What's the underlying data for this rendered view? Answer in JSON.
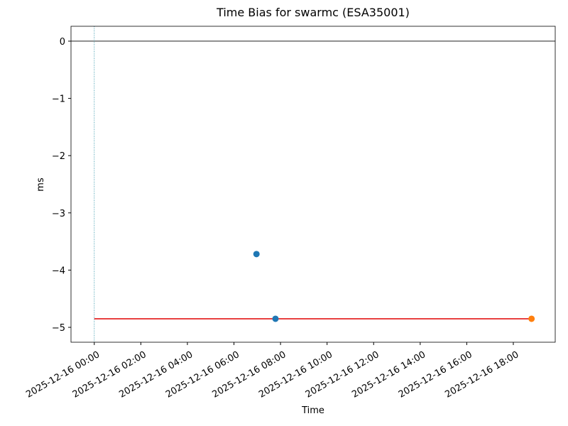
{
  "chart_data": {
    "type": "scatter",
    "title": "Time Bias for swarmc (ESA35001)",
    "xlabel": "Time",
    "ylabel": "ms",
    "xlim": [
      "2025-12-15 23:00",
      "2025-12-16 19:48"
    ],
    "xticks": [
      "2025-12-16 00:00",
      "2025-12-16 02:00",
      "2025-12-16 04:00",
      "2025-12-16 06:00",
      "2025-12-16 08:00",
      "2025-12-16 10:00",
      "2025-12-16 12:00",
      "2025-12-16 14:00",
      "2025-12-16 16:00",
      "2025-12-16 18:00"
    ],
    "ylim": [
      -5.26,
      0.26
    ],
    "yticks": [
      {
        "value": -5,
        "label": "−5"
      },
      {
        "value": -4,
        "label": "−4"
      },
      {
        "value": -3,
        "label": "−3"
      },
      {
        "value": -2,
        "label": "−2"
      },
      {
        "value": -1,
        "label": "−1"
      },
      0
    ],
    "hline": 0,
    "vline": "2025-12-16 00:00",
    "series": [
      {
        "kind": "scatter",
        "color": "#1f77b4",
        "x": [
          "2025-12-16 06:58",
          "2025-12-16 07:47"
        ],
        "values": [
          -3.72,
          -4.85
        ]
      },
      {
        "kind": "scatter",
        "color": "#ff7f0e",
        "x": [
          "2025-12-16 18:47"
        ],
        "values": [
          -4.85
        ]
      },
      {
        "kind": "line",
        "color": "#e00000",
        "x": [
          "2025-12-16 00:00",
          "2025-12-16 18:47"
        ],
        "values": [
          -4.85,
          -4.85
        ]
      }
    ]
  }
}
